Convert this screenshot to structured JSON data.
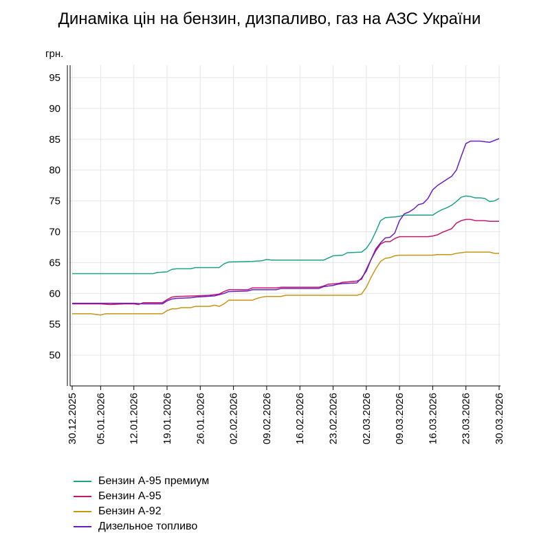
{
  "chart_data": {
    "type": "line",
    "title": "Динаміка цін на бензин, дизпаливо, газ на АЗС України",
    "ylabel": "грн.",
    "ylim": [
      45,
      97
    ],
    "yticks": [
      50,
      55,
      60,
      65,
      70,
      75,
      80,
      85,
      90,
      95
    ],
    "xlim": [
      "2025-12-30",
      "2026-03-30"
    ],
    "xticks": [
      {
        "date": "2025-12-30",
        "label": "30.12.2025"
      },
      {
        "date": "2026-01-05",
        "label": "05.01.2026"
      },
      {
        "date": "2026-01-12",
        "label": "12.01.2026"
      },
      {
        "date": "2026-01-19",
        "label": "19.01.2026"
      },
      {
        "date": "2026-01-26",
        "label": "26.01.2026"
      },
      {
        "date": "2026-02-02",
        "label": "02.02.2026"
      },
      {
        "date": "2026-02-09",
        "label": "09.02.2026"
      },
      {
        "date": "2026-02-16",
        "label": "16.02.2026"
      },
      {
        "date": "2026-02-23",
        "label": "23.02.2026"
      },
      {
        "date": "2026-03-02",
        "label": "02.03.2026"
      },
      {
        "date": "2026-03-09",
        "label": "09.03.2026"
      },
      {
        "date": "2026-03-16",
        "label": "16.03.2026"
      },
      {
        "date": "2026-03-23",
        "label": "23.03.2026"
      },
      {
        "date": "2026-03-30",
        "label": "30.03.2026"
      }
    ],
    "grid": true,
    "legend": "bottom-left",
    "series": [
      {
        "name": "Бензин А-95 премиум",
        "color": "#1aa38a",
        "points": [
          [
            "2025-12-30",
            63.2
          ],
          [
            "2026-01-12",
            63.2
          ],
          [
            "2026-01-16",
            63.2
          ],
          [
            "2026-01-17",
            63.4
          ],
          [
            "2026-01-19",
            63.5
          ],
          [
            "2026-01-20",
            63.9
          ],
          [
            "2026-01-21",
            64.0
          ],
          [
            "2026-01-24",
            64.0
          ],
          [
            "2026-01-25",
            64.2
          ],
          [
            "2026-01-30",
            64.2
          ],
          [
            "2026-01-31",
            64.8
          ],
          [
            "2026-02-01",
            65.1
          ],
          [
            "2026-02-06",
            65.2
          ],
          [
            "2026-02-08",
            65.3
          ],
          [
            "2026-02-09",
            65.5
          ],
          [
            "2026-02-10",
            65.4
          ],
          [
            "2026-02-21",
            65.4
          ],
          [
            "2026-02-23",
            66.1
          ],
          [
            "2026-02-25",
            66.2
          ],
          [
            "2026-02-26",
            66.6
          ],
          [
            "2026-03-01",
            66.7
          ],
          [
            "2026-03-02",
            67.3
          ],
          [
            "2026-03-03",
            68.4
          ],
          [
            "2026-03-04",
            70.0
          ],
          [
            "2026-03-05",
            71.8
          ],
          [
            "2026-03-06",
            72.3
          ],
          [
            "2026-03-08",
            72.4
          ],
          [
            "2026-03-09",
            72.5
          ],
          [
            "2026-03-10",
            72.7
          ],
          [
            "2026-03-16",
            72.7
          ],
          [
            "2026-03-17",
            73.2
          ],
          [
            "2026-03-18",
            73.6
          ],
          [
            "2026-03-19",
            73.9
          ],
          [
            "2026-03-20",
            74.3
          ],
          [
            "2026-03-21",
            74.9
          ],
          [
            "2026-03-22",
            75.6
          ],
          [
            "2026-03-23",
            75.8
          ],
          [
            "2026-03-24",
            75.7
          ],
          [
            "2026-03-25",
            75.5
          ],
          [
            "2026-03-26",
            75.5
          ],
          [
            "2026-03-27",
            75.4
          ],
          [
            "2026-03-28",
            74.9
          ],
          [
            "2026-03-29",
            75.0
          ],
          [
            "2026-03-30",
            75.4
          ]
        ]
      },
      {
        "name": "Бензин А-95",
        "color": "#c4176a",
        "points": [
          [
            "2025-12-30",
            58.3
          ],
          [
            "2026-01-05",
            58.3
          ],
          [
            "2026-01-07",
            58.2
          ],
          [
            "2026-01-10",
            58.3
          ],
          [
            "2026-01-12",
            58.3
          ],
          [
            "2026-01-13",
            58.2
          ],
          [
            "2026-01-14",
            58.5
          ],
          [
            "2026-01-18",
            58.5
          ],
          [
            "2026-01-19",
            59.0
          ],
          [
            "2026-01-20",
            59.4
          ],
          [
            "2026-01-21",
            59.5
          ],
          [
            "2026-01-25",
            59.6
          ],
          [
            "2026-01-28",
            59.7
          ],
          [
            "2026-01-30",
            59.9
          ],
          [
            "2026-01-31",
            60.3
          ],
          [
            "2026-02-01",
            60.6
          ],
          [
            "2026-02-05",
            60.6
          ],
          [
            "2026-02-06",
            60.9
          ],
          [
            "2026-02-11",
            60.9
          ],
          [
            "2026-02-12",
            61.0
          ],
          [
            "2026-02-20",
            61.0
          ],
          [
            "2026-02-21",
            61.2
          ],
          [
            "2026-02-22",
            61.5
          ],
          [
            "2026-02-24",
            61.6
          ],
          [
            "2026-02-25",
            61.8
          ],
          [
            "2026-02-28",
            62.0
          ],
          [
            "2026-03-01",
            62.3
          ],
          [
            "2026-03-02",
            63.9
          ],
          [
            "2026-03-03",
            65.5
          ],
          [
            "2026-03-04",
            66.9
          ],
          [
            "2026-03-05",
            68.0
          ],
          [
            "2026-03-06",
            68.4
          ],
          [
            "2026-03-07",
            68.4
          ],
          [
            "2026-03-08",
            68.9
          ],
          [
            "2026-03-09",
            69.2
          ],
          [
            "2026-03-15",
            69.2
          ],
          [
            "2026-03-16",
            69.3
          ],
          [
            "2026-03-17",
            69.5
          ],
          [
            "2026-03-18",
            69.9
          ],
          [
            "2026-03-19",
            70.2
          ],
          [
            "2026-03-20",
            70.5
          ],
          [
            "2026-03-21",
            71.4
          ],
          [
            "2026-03-22",
            71.8
          ],
          [
            "2026-03-23",
            72.0
          ],
          [
            "2026-03-24",
            72.0
          ],
          [
            "2026-03-25",
            71.8
          ],
          [
            "2026-03-27",
            71.8
          ],
          [
            "2026-03-28",
            71.7
          ],
          [
            "2026-03-30",
            71.7
          ]
        ]
      },
      {
        "name": "Бензин А-92",
        "color": "#c89512",
        "points": [
          [
            "2025-12-30",
            56.7
          ],
          [
            "2026-01-03",
            56.7
          ],
          [
            "2026-01-04",
            56.6
          ],
          [
            "2026-01-05",
            56.5
          ],
          [
            "2026-01-06",
            56.7
          ],
          [
            "2026-01-18",
            56.7
          ],
          [
            "2026-01-19",
            57.2
          ],
          [
            "2026-01-20",
            57.5
          ],
          [
            "2026-01-21",
            57.5
          ],
          [
            "2026-01-22",
            57.7
          ],
          [
            "2026-01-24",
            57.7
          ],
          [
            "2026-01-25",
            57.9
          ],
          [
            "2026-01-28",
            57.9
          ],
          [
            "2026-01-29",
            58.1
          ],
          [
            "2026-01-30",
            57.9
          ],
          [
            "2026-01-31",
            58.3
          ],
          [
            "2026-02-01",
            58.9
          ],
          [
            "2026-02-06",
            58.9
          ],
          [
            "2026-02-07",
            59.2
          ],
          [
            "2026-02-08",
            59.4
          ],
          [
            "2026-02-09",
            59.5
          ],
          [
            "2026-02-12",
            59.5
          ],
          [
            "2026-02-13",
            59.7
          ],
          [
            "2026-02-28",
            59.7
          ],
          [
            "2026-03-01",
            59.9
          ],
          [
            "2026-03-02",
            61.0
          ],
          [
            "2026-03-03",
            62.6
          ],
          [
            "2026-03-04",
            64.0
          ],
          [
            "2026-03-05",
            65.2
          ],
          [
            "2026-03-06",
            65.7
          ],
          [
            "2026-03-07",
            65.8
          ],
          [
            "2026-03-08",
            66.1
          ],
          [
            "2026-03-09",
            66.2
          ],
          [
            "2026-03-16",
            66.2
          ],
          [
            "2026-03-17",
            66.3
          ],
          [
            "2026-03-20",
            66.3
          ],
          [
            "2026-03-21",
            66.5
          ],
          [
            "2026-03-22",
            66.6
          ],
          [
            "2026-03-23",
            66.7
          ],
          [
            "2026-03-28",
            66.7
          ],
          [
            "2026-03-29",
            66.5
          ],
          [
            "2026-03-30",
            66.5
          ]
        ]
      },
      {
        "name": "Дизельное топливо",
        "color": "#6a1cc4",
        "points": [
          [
            "2025-12-30",
            58.4
          ],
          [
            "2026-01-12",
            58.4
          ],
          [
            "2026-01-14",
            58.3
          ],
          [
            "2026-01-18",
            58.3
          ],
          [
            "2026-01-19",
            58.8
          ],
          [
            "2026-01-20",
            59.1
          ],
          [
            "2026-01-21",
            59.2
          ],
          [
            "2026-01-24",
            59.3
          ],
          [
            "2026-01-25",
            59.4
          ],
          [
            "2026-01-29",
            59.6
          ],
          [
            "2026-01-31",
            60.0
          ],
          [
            "2026-02-01",
            60.3
          ],
          [
            "2026-02-05",
            60.4
          ],
          [
            "2026-02-06",
            60.6
          ],
          [
            "2026-02-11",
            60.6
          ],
          [
            "2026-02-12",
            60.8
          ],
          [
            "2026-02-20",
            60.8
          ],
          [
            "2026-02-21",
            61.1
          ],
          [
            "2026-02-23",
            61.3
          ],
          [
            "2026-02-24",
            61.5
          ],
          [
            "2026-02-25",
            61.6
          ],
          [
            "2026-02-28",
            61.7
          ],
          [
            "2026-03-01",
            62.5
          ],
          [
            "2026-03-02",
            63.6
          ],
          [
            "2026-03-03",
            65.5
          ],
          [
            "2026-03-04",
            67.2
          ],
          [
            "2026-03-05",
            68.2
          ],
          [
            "2026-03-06",
            69.0
          ],
          [
            "2026-03-07",
            69.1
          ],
          [
            "2026-03-08",
            69.8
          ],
          [
            "2026-03-09",
            71.8
          ],
          [
            "2026-03-10",
            72.9
          ],
          [
            "2026-03-11",
            73.2
          ],
          [
            "2026-03-12",
            73.7
          ],
          [
            "2026-03-13",
            74.4
          ],
          [
            "2026-03-14",
            74.6
          ],
          [
            "2026-03-15",
            75.4
          ],
          [
            "2026-03-16",
            76.8
          ],
          [
            "2026-03-17",
            77.5
          ],
          [
            "2026-03-18",
            78.0
          ],
          [
            "2026-03-19",
            78.5
          ],
          [
            "2026-03-20",
            79.0
          ],
          [
            "2026-03-21",
            80.0
          ],
          [
            "2026-03-22",
            82.2
          ],
          [
            "2026-03-23",
            84.3
          ],
          [
            "2026-03-24",
            84.7
          ],
          [
            "2026-03-26",
            84.7
          ],
          [
            "2026-03-27",
            84.6
          ],
          [
            "2026-03-28",
            84.5
          ],
          [
            "2026-03-29",
            84.8
          ],
          [
            "2026-03-30",
            85.1
          ]
        ]
      }
    ]
  }
}
